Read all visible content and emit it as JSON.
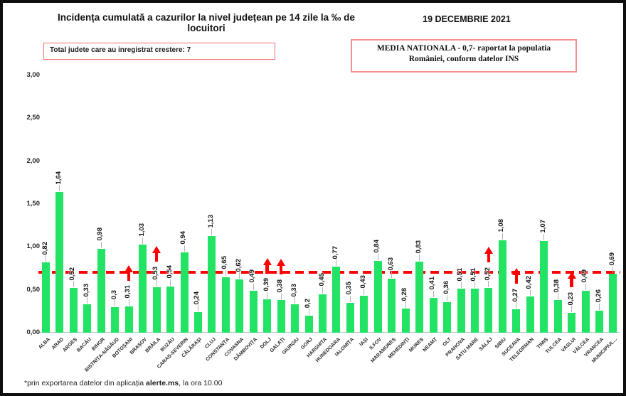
{
  "header": {
    "title": "Incidența cumulată a cazurilor la nivel județean pe 14 zile la ‰ de locuitori",
    "date": "19 DECEMBRIE 2021"
  },
  "info_boxes": {
    "growth_note": "Total judete care au inregistrat crestere: 7",
    "national_average_note": "MEDIA NATIONALA - 0,7-  raportat la populatia României, conform datelor INS"
  },
  "footer": {
    "prefix": "*prin exportarea datelor din aplicația ",
    "bold": "alerte.ms",
    "suffix": ", la ora 10.00"
  },
  "chart_data": {
    "type": "bar",
    "title": "Incidența cumulată a cazurilor la nivel județean pe 14 zile la ‰ de locuitori",
    "xlabel": "",
    "ylabel": "",
    "ylim": [
      0,
      3
    ],
    "grid": false,
    "legend": false,
    "y_ticks": [
      "3,00",
      "2,50",
      "2,00",
      "1,50",
      "1,00",
      "0,50",
      "0,00"
    ],
    "bar_color": "#22e364",
    "arrow_color": "#ff0000",
    "reference_line": {
      "value": 0.7,
      "style": "dashed",
      "color": "#ff0000",
      "label": "MEDIA NATIONALA - 0,7"
    },
    "categories": [
      "ALBA",
      "ARAD",
      "ARGEȘ",
      "BACĂU",
      "BIHOR",
      "BISTRIȚA-NĂSĂUD",
      "BOTOȘANI",
      "BRAȘOV",
      "BRĂILA",
      "BUZĂU",
      "CARAȘ-SEVERIN",
      "CĂLĂRAȘI",
      "CLUJ",
      "CONSTANȚA",
      "COVASNA",
      "DÂMBOVIȚA",
      "DOLJ",
      "GALAȚI",
      "GIURGIU",
      "GORJ",
      "HARGHITA",
      "HUNEDOARA",
      "IALOMIȚA",
      "IAȘI",
      "ILFOV",
      "MARAMUREȘ",
      "MEHEDINȚI",
      "MUREȘ",
      "NEAMȚ",
      "OLT",
      "PRAHOVA",
      "SATU MARE",
      "SĂLAJ",
      "SIBIU",
      "SUCEAVA",
      "TELEORMAN",
      "TIMIȘ",
      "TULCEA",
      "VASLUI",
      "VÂLCEA",
      "VRANCEA",
      "MUNICIPIUL..."
    ],
    "values": [
      0.82,
      1.64,
      0.52,
      0.33,
      0.98,
      0.3,
      0.31,
      1.03,
      0.53,
      0.54,
      0.94,
      0.24,
      1.13,
      0.65,
      0.62,
      0.49,
      0.39,
      0.38,
      0.33,
      0.2,
      0.45,
      0.77,
      0.35,
      0.43,
      0.84,
      0.63,
      0.28,
      0.83,
      0.41,
      0.36,
      0.51,
      0.51,
      0.52,
      1.08,
      0.27,
      0.42,
      1.07,
      0.38,
      0.23,
      0.49,
      0.26,
      0.69
    ],
    "value_labels": [
      "0,82",
      "1,64",
      "0,52",
      "0,33",
      "0,98",
      "0,3",
      "0,31",
      "1,03",
      "0,53",
      "0,54",
      "0,94",
      "0,24",
      "1,13",
      "0,65",
      "0,62",
      "0,49",
      "0,39",
      "0,38",
      "0,33",
      "0,2",
      "0,45",
      "0,77",
      "0,35",
      "0,43",
      "0,84",
      "0,63",
      "0,28",
      "0,83",
      "0,41",
      "0,36",
      "0,51",
      "0,51",
      "0,52",
      "1,08",
      "0,27",
      "0,42",
      "1,07",
      "0,38",
      "0,23",
      "0,49",
      "0,26",
      "0,69"
    ],
    "arrow_flags": [
      0,
      0,
      0,
      0,
      0,
      0,
      1,
      0,
      1,
      0,
      0,
      0,
      0,
      0,
      0,
      0,
      1,
      1,
      0,
      0,
      0,
      0,
      0,
      0,
      0,
      0,
      0,
      0,
      0,
      0,
      0,
      0,
      1,
      0,
      1,
      0,
      0,
      0,
      1,
      0,
      0,
      0
    ],
    "increase_counties": [
      "BOTOȘANI",
      "BRĂILA",
      "DOLJ",
      "GALAȚI",
      "SĂLAJ",
      "SUCEAVA",
      "VASLUI"
    ]
  }
}
